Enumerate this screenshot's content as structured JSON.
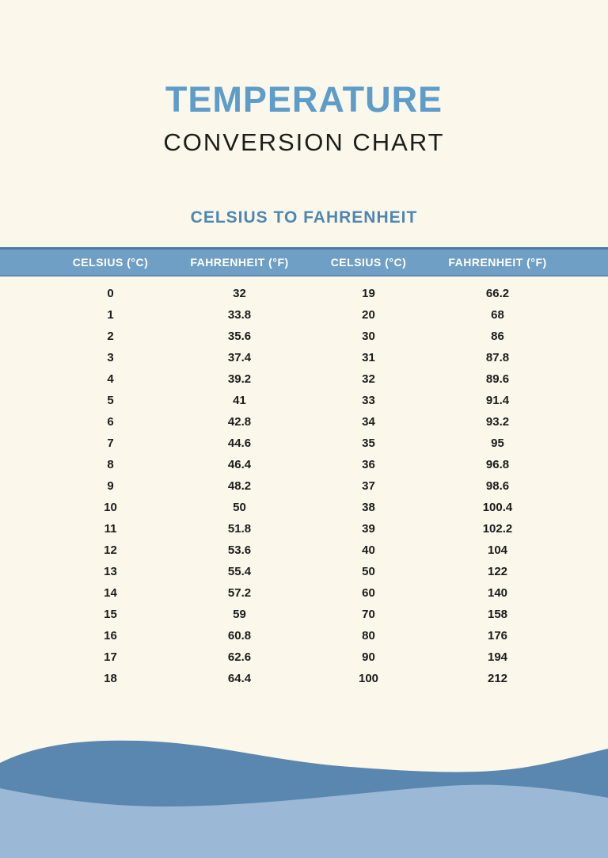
{
  "header": {
    "title": "TEMPERATURE",
    "subtitle": "CONVERSION CHART"
  },
  "section": {
    "title": "CELSIUS TO FAHRENHEIT"
  },
  "table": {
    "columns": [
      "CELSIUS (°C)",
      "FAHRENHEIT (°F)",
      "CELSIUS (°C)",
      "FAHRENHEIT (°F)"
    ],
    "rows": [
      {
        "c1": "0",
        "f1": "32",
        "c2": "19",
        "f2": "66.2"
      },
      {
        "c1": "1",
        "f1": "33.8",
        "c2": "20",
        "f2": "68"
      },
      {
        "c1": "2",
        "f1": "35.6",
        "c2": "30",
        "f2": "86"
      },
      {
        "c1": "3",
        "f1": "37.4",
        "c2": "31",
        "f2": "87.8"
      },
      {
        "c1": "4",
        "f1": "39.2",
        "c2": "32",
        "f2": "89.6"
      },
      {
        "c1": "5",
        "f1": "41",
        "c2": "33",
        "f2": "91.4"
      },
      {
        "c1": "6",
        "f1": "42.8",
        "c2": "34",
        "f2": "93.2"
      },
      {
        "c1": "7",
        "f1": "44.6",
        "c2": "35",
        "f2": "95"
      },
      {
        "c1": "8",
        "f1": "46.4",
        "c2": "36",
        "f2": "96.8"
      },
      {
        "c1": "9",
        "f1": "48.2",
        "c2": "37",
        "f2": "98.6"
      },
      {
        "c1": "10",
        "f1": "50",
        "c2": "38",
        "f2": "100.4"
      },
      {
        "c1": "11",
        "f1": "51.8",
        "c2": "39",
        "f2": "102.2"
      },
      {
        "c1": "12",
        "f1": "53.6",
        "c2": "40",
        "f2": "104"
      },
      {
        "c1": "13",
        "f1": "55.4",
        "c2": "50",
        "f2": "122"
      },
      {
        "c1": "14",
        "f1": "57.2",
        "c2": "60",
        "f2": "140"
      },
      {
        "c1": "15",
        "f1": "59",
        "c2": "70",
        "f2": "158"
      },
      {
        "c1": "16",
        "f1": "60.8",
        "c2": "80",
        "f2": "176"
      },
      {
        "c1": "17",
        "f1": "62.6",
        "c2": "90",
        "f2": "194"
      },
      {
        "c1": "18",
        "f1": "64.4",
        "c2": "100",
        "f2": "212"
      }
    ]
  },
  "colors": {
    "background": "#fbf7ea",
    "title_blue": "#5e9cc9",
    "subtitle_text": "#1d1d1b",
    "section_blue": "#4d87b2",
    "header_band": "#6f9fc5",
    "header_band_border": "#4b7aa2",
    "header_text": "#ffffff",
    "cell_text": "#1c1c1c",
    "wave_dark": "#5a87af",
    "wave_light": "#9bb9d7"
  }
}
